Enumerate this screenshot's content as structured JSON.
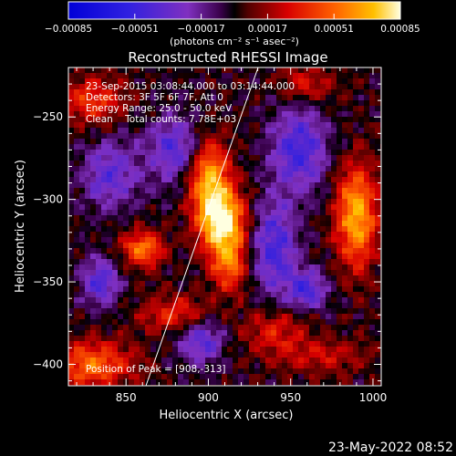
{
  "chart_data": {
    "type": "heatmap",
    "title": "Reconstructed RHESSI Image",
    "xlabel": "Heliocentric X (arcsec)",
    "ylabel": "Heliocentric Y (arcsec)",
    "xlim": [
      815,
      1005
    ],
    "ylim": [
      -413,
      -220
    ],
    "x_ticks": [
      850,
      900,
      950,
      1000
    ],
    "y_ticks": [
      -400,
      -350,
      -300,
      -250
    ],
    "colorbar": {
      "ticks": [
        "-0.00085",
        "-0.00051",
        "-0.00017",
        "0.00017",
        "0.00051",
        "0.00085"
      ],
      "range": [
        -0.00085,
        0.00085
      ],
      "unit_label": "(photons cm⁻² s⁻¹ asec⁻²)"
    },
    "annotations": [
      "23-Sep-2015 03:08:44.000 to 03:14:44.000",
      "Detectors: 3F 5F 6F 7F, Att 0",
      "Energy Range: 25.0 - 50.0 keV",
      "Clean    Total counts: 7.78E+03"
    ],
    "peak_label": "Position of Peak = [908,-313]",
    "peak": [
      908,
      -313
    ],
    "timestamp": "23-May-2022 08:52",
    "sources": [
      {
        "x": 908,
        "y": -313,
        "amp": 1.0,
        "sx": 10,
        "sy": 14
      },
      {
        "x": 900,
        "y": -285,
        "amp": 0.75,
        "sx": 9,
        "sy": 16
      },
      {
        "x": 913,
        "y": -340,
        "amp": 0.55,
        "sx": 8,
        "sy": 12
      },
      {
        "x": 860,
        "y": -330,
        "amp": 0.65,
        "sx": 9,
        "sy": 8
      },
      {
        "x": 990,
        "y": -310,
        "amp": 0.8,
        "sx": 9,
        "sy": 22
      },
      {
        "x": 880,
        "y": -370,
        "amp": 0.45,
        "sx": 15,
        "sy": 8
      },
      {
        "x": 940,
        "y": -380,
        "amp": 0.35,
        "sx": 14,
        "sy": 10
      },
      {
        "x": 830,
        "y": -240,
        "amp": 0.45,
        "sx": 14,
        "sy": 10
      },
      {
        "x": 960,
        "y": -230,
        "amp": 0.35,
        "sx": 12,
        "sy": 8
      },
      {
        "x": 830,
        "y": -400,
        "amp": 0.6,
        "sx": 18,
        "sy": 10
      },
      {
        "x": 970,
        "y": -395,
        "amp": 0.3,
        "sx": 20,
        "sy": 8
      },
      {
        "x": 940,
        "y": -330,
        "amp": -0.55,
        "sx": 10,
        "sy": 20
      },
      {
        "x": 955,
        "y": -270,
        "amp": -0.55,
        "sx": 12,
        "sy": 18
      },
      {
        "x": 880,
        "y": -270,
        "amp": -0.5,
        "sx": 12,
        "sy": 14
      },
      {
        "x": 840,
        "y": -285,
        "amp": -0.45,
        "sx": 12,
        "sy": 14
      },
      {
        "x": 895,
        "y": -385,
        "amp": -0.5,
        "sx": 10,
        "sy": 10
      },
      {
        "x": 960,
        "y": -355,
        "amp": -0.55,
        "sx": 8,
        "sy": 8
      },
      {
        "x": 835,
        "y": -350,
        "amp": -0.5,
        "sx": 8,
        "sy": 10
      }
    ]
  }
}
